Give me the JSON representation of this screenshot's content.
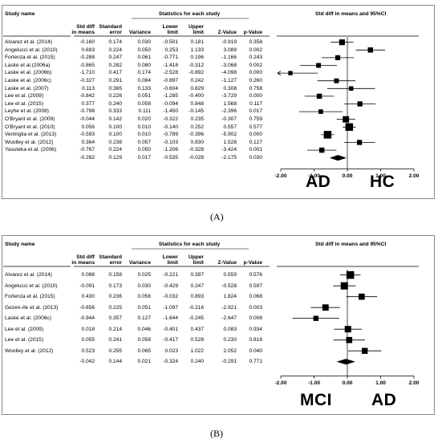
{
  "panels": [
    {
      "id": "A",
      "caption": "(A)",
      "columns": {
        "study": "Study name",
        "group": "Statistics for each study",
        "forest": "Std diff in means and 95%CI",
        "h1a": "Std diff",
        "h1b": "in means",
        "h2a": "Standard",
        "h2b": "error",
        "h3": "Variance",
        "h4a": "Lower",
        "h4b": "limit",
        "h5a": "Upper",
        "h5b": "limit",
        "h6": "Z-Value",
        "h7": "p-Value"
      },
      "rows": [
        {
          "study": "Alvarez et al. (2014)",
          "d": "-0.160",
          "se": "0.174",
          "var": "0.030",
          "lo": "-0.501",
          "hi": "0.181",
          "z": "-0.919",
          "p": "0.358"
        },
        {
          "study": "Angelucci et al. (2010)",
          "d": "0.693",
          "se": "0.224",
          "var": "0.050",
          "lo": "0.253",
          "hi": "1.133",
          "z": "3.089",
          "p": "0.002"
        },
        {
          "study": "Forlenza et al. (2015)",
          "d": "-0.288",
          "se": "0.247",
          "var": "0.061",
          "lo": "-0.771",
          "hi": "0.196",
          "z": "-1.166",
          "p": "0.243"
        },
        {
          "study": "Laske et al.(2006a)",
          "d": "-0.865",
          "se": "0.282",
          "var": "0.080",
          "lo": "-1.418",
          "hi": "-0.312",
          "z": "-3.068",
          "p": "0.002"
        },
        {
          "study": "Laske et al. (2006b)",
          "d": "-1.710",
          "se": "0.417",
          "var": "0.174",
          "lo": "-2.528",
          "hi": "-0.892",
          "z": "-4.098",
          "p": "0.000"
        },
        {
          "study": "Laske et al. (2006c)",
          "d": "-0.327",
          "se": "0.291",
          "var": "0.084",
          "lo": "-0.897",
          "hi": "0.242",
          "z": "-1.127",
          "p": "0.260"
        },
        {
          "study": "Laske et al. (2007)",
          "d": "0.113",
          "se": "0.365",
          "var": "0.133",
          "lo": "-0.604",
          "hi": "0.829",
          "z": "0.308",
          "p": "0.758"
        },
        {
          "study": "Lee et al. (2009)",
          "d": "-0.842",
          "se": "0.226",
          "var": "0.051",
          "lo": "-1.285",
          "hi": "-0.400",
          "z": "-3.729",
          "p": "0.000"
        },
        {
          "study": "Lee et al. (2015)",
          "d": "0.377",
          "se": "0.240",
          "var": "0.058",
          "lo": "-0.094",
          "hi": "0.848",
          "z": "1.568",
          "p": "0.117"
        },
        {
          "study": "Leyhe et al. (2008)",
          "d": "-0.798",
          "se": "0.333",
          "var": "0.111",
          "lo": "-1.450",
          "hi": "-0.145",
          "z": "-2.396",
          "p": "0.017"
        },
        {
          "study": "O'Bryant et al. (2009)",
          "d": "-0.044",
          "se": "0.142",
          "var": "0.020",
          "lo": "-0.322",
          "hi": "0.235",
          "z": "-0.307",
          "p": "0.759"
        },
        {
          "study": "O'Bryant et al. (2010)",
          "d": "0.056",
          "se": "0.100",
          "var": "0.010",
          "lo": "-0.140",
          "hi": "0.252",
          "z": "0.557",
          "p": "0.577"
        },
        {
          "study": "Ventriglia et al. (2013)",
          "d": "-0.593",
          "se": "0.100",
          "var": "0.010",
          "lo": "-0.789",
          "hi": "-0.396",
          "z": "-5.902",
          "p": "0.000"
        },
        {
          "study": "Woolley et al. (2012)",
          "d": "0.364",
          "se": "0.238",
          "var": "0.057",
          "lo": "-0.103",
          "hi": "0.830",
          "z": "1.528",
          "p": "0.127"
        },
        {
          "study": "Yasuteka et al. (2006)",
          "d": "-0.767",
          "se": "0.224",
          "var": "0.050",
          "lo": "-1.206",
          "hi": "-0.328",
          "z": "-3.424",
          "p": "0.001"
        }
      ],
      "summary": {
        "study": "",
        "d": "-0.282",
        "se": "0.129",
        "var": "0.017",
        "lo": "-0.535",
        "hi": "-0.028",
        "z": "-2.175",
        "p": "0.030"
      },
      "ticks": [
        "-2.00",
        "-1.00",
        "0.00",
        "1.00",
        "2.00"
      ],
      "left_label": "AD",
      "right_label": "HC"
    },
    {
      "id": "B",
      "caption": "(B)",
      "columns": {
        "study": "Study name",
        "group": "Statistics for each study",
        "forest": "Std diff in means and 95%CI",
        "h1a": "Std diff",
        "h1b": "in means",
        "h2a": "Standard",
        "h2b": "error",
        "h3": "Variance",
        "h4a": "Lower",
        "h4b": "limit",
        "h5a": "Upper",
        "h5b": "limit",
        "h6": "Z-Value",
        "h7": "p-Value"
      },
      "rows": [
        {
          "study": "Alvarez et al. (2014)",
          "d": "0.088",
          "se": "0.158",
          "var": "0.025",
          "lo": "-0.221",
          "hi": "0.397",
          "z": "0.559",
          "p": "0.576"
        },
        {
          "study": "Angelucci et al. (2010)",
          "d": "-0.091",
          "se": "0.173",
          "var": "0.030",
          "lo": "-0.429",
          "hi": "0.247",
          "z": "-0.528",
          "p": "0.597"
        },
        {
          "study": "Forlenza et al. (2015)",
          "d": "0.430",
          "se": "0.236",
          "var": "0.056",
          "lo": "-0.032",
          "hi": "0.893",
          "z": "1.824",
          "p": "0.068"
        },
        {
          "study": "Gezen-Ak et al. (2013)",
          "d": "-0.656",
          "se": "0.225",
          "var": "0.051",
          "lo": "-1.097",
          "hi": "-0.216",
          "z": "-2.921",
          "p": "0.003"
        },
        {
          "study": "Laske et al. (2006c)",
          "d": "-0.944",
          "se": "0.357",
          "var": "0.127",
          "lo": "-1.644",
          "hi": "-0.245",
          "z": "-2.647",
          "p": "0.008"
        },
        {
          "study": "Lee et al. (2009)",
          "d": "0.018",
          "se": "0.214",
          "var": "0.046",
          "lo": "-0.401",
          "hi": "0.437",
          "z": "0.083",
          "p": "0.934"
        },
        {
          "study": "Lee et al. (2015)",
          "d": "0.055",
          "se": "0.241",
          "var": "0.058",
          "lo": "-0.417",
          "hi": "0.528",
          "z": "0.230",
          "p": "0.818"
        },
        {
          "study": "Woolley et al. (2012)",
          "d": "0.523",
          "se": "0.255",
          "var": "0.065",
          "lo": "0.023",
          "hi": "1.022",
          "z": "2.052",
          "p": "0.040"
        }
      ],
      "summary": {
        "study": "",
        "d": "-0.042",
        "se": "0.144",
        "var": "0.021",
        "lo": "-0.324",
        "hi": "0.240",
        "z": "-0.291",
        "p": "0.771"
      },
      "ticks": [
        "-2.00",
        "-1.00",
        "0.00",
        "1.00",
        "2.00"
      ],
      "left_label": "MCI",
      "right_label": "AD"
    }
  ],
  "chart_data": [
    {
      "type": "forest",
      "xlim": [
        -2,
        2
      ],
      "ticks": [
        -2,
        -1,
        0,
        1,
        2
      ],
      "title": "Std diff in means and 95%CI",
      "studies": [
        "Alvarez et al. (2014)",
        "Angelucci et al. (2010)",
        "Forlenza et al. (2015)",
        "Laske et al.(2006a)",
        "Laske et al. (2006b)",
        "Laske et al. (2006c)",
        "Laske et al. (2007)",
        "Lee et al. (2009)",
        "Lee et al. (2015)",
        "Leyhe et al. (2008)",
        "O'Bryant et al. (2009)",
        "O'Bryant et al. (2010)",
        "Ventriglia et al. (2013)",
        "Woolley et al. (2012)",
        "Yasuteka et al. (2006)"
      ],
      "estimate": [
        -0.16,
        0.693,
        -0.288,
        -0.865,
        -1.71,
        -0.327,
        0.113,
        -0.842,
        0.377,
        -0.798,
        -0.044,
        0.056,
        -0.593,
        0.364,
        -0.767
      ],
      "lower": [
        -0.501,
        0.253,
        -0.771,
        -1.418,
        -2.528,
        -0.897,
        -0.604,
        -1.285,
        -0.094,
        -1.45,
        -0.322,
        -0.14,
        -0.789,
        -0.103,
        -1.206
      ],
      "upper": [
        0.181,
        1.133,
        0.196,
        -0.312,
        -0.892,
        0.242,
        0.829,
        -0.4,
        0.848,
        -0.145,
        0.235,
        0.252,
        -0.396,
        0.83,
        -0.328
      ],
      "variance": [
        0.03,
        0.05,
        0.061,
        0.08,
        0.174,
        0.084,
        0.133,
        0.051,
        0.058,
        0.111,
        0.02,
        0.01,
        0.01,
        0.057,
        0.05
      ],
      "summary": {
        "estimate": -0.282,
        "lower": -0.535,
        "upper": -0.028
      },
      "left_label": "AD",
      "right_label": "HC"
    },
    {
      "type": "forest",
      "xlim": [
        -2,
        2
      ],
      "ticks": [
        -2,
        -1,
        0,
        1,
        2
      ],
      "title": "Std diff in means and 95%CI",
      "studies": [
        "Alvarez et al. (2014)",
        "Angelucci et al. (2010)",
        "Forlenza et al. (2015)",
        "Gezen-Ak et al. (2013)",
        "Laske et al. (2006c)",
        "Lee et al. (2009)",
        "Lee et al. (2015)",
        "Woolley et al. (2012)"
      ],
      "estimate": [
        0.088,
        -0.091,
        0.43,
        -0.656,
        -0.944,
        0.018,
        0.055,
        0.523
      ],
      "lower": [
        -0.221,
        -0.429,
        -0.032,
        -1.097,
        -1.644,
        -0.401,
        -0.417,
        0.023
      ],
      "upper": [
        0.397,
        0.247,
        0.893,
        -0.216,
        -0.245,
        0.437,
        0.528,
        1.022
      ],
      "variance": [
        0.025,
        0.03,
        0.056,
        0.051,
        0.127,
        0.046,
        0.058,
        0.065
      ],
      "summary": {
        "estimate": -0.042,
        "lower": -0.324,
        "upper": 0.24
      },
      "left_label": "MCI",
      "right_label": "AD"
    }
  ]
}
